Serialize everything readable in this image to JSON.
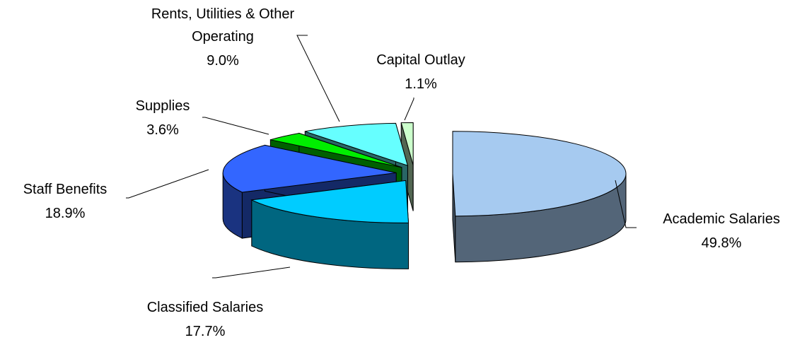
{
  "chart_data": {
    "type": "pie3d",
    "categories": [
      "Academic Salaries",
      "Classified Salaries",
      "Staff Benefits",
      "Supplies",
      "Rents, Utilities & Other Operating",
      "Capital Outlay"
    ],
    "values": [
      49.8,
      17.7,
      18.9,
      3.6,
      9.0,
      1.1
    ],
    "value_labels": [
      "49.8%",
      "17.7%",
      "18.9%",
      "3.6%",
      "9.0%",
      "1.1%"
    ],
    "colors": [
      "#a6caf0",
      "#00ccff",
      "#3366ff",
      "#00ee00",
      "#66ffff",
      "#ccffcc"
    ]
  }
}
